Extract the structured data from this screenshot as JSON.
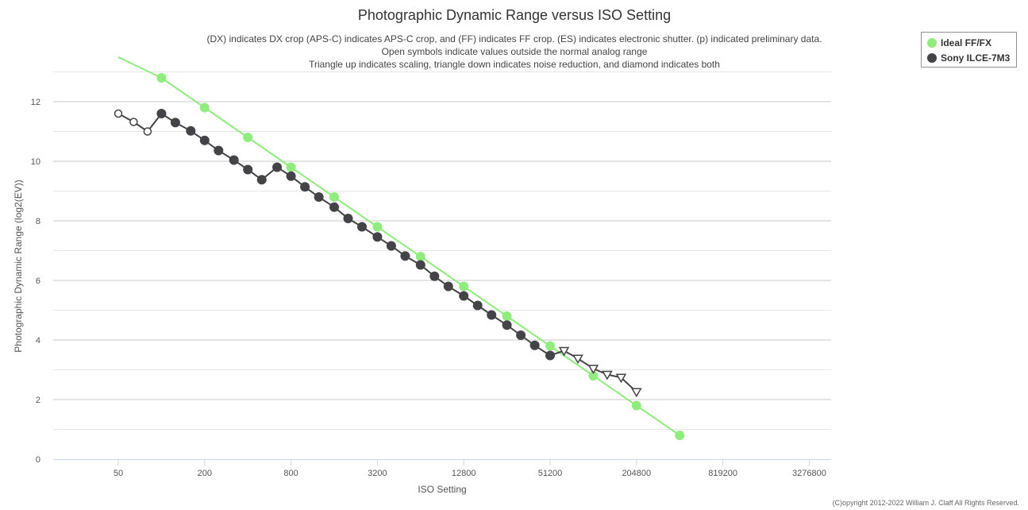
{
  "chart_data": {
    "type": "line",
    "title": "Photographic Dynamic Range versus ISO Setting",
    "subtitle_lines": [
      "(DX) indicates DX crop (APS-C) indicates APS-C crop, and (FF) indicates FF crop. (ES) indicates electronic shutter. (p) indicated preliminary data.",
      "Open symbols indicate values outside the normal analog range",
      "Triangle up indicates scaling, triangle down indicates noise reduction, and diamond indicates both"
    ],
    "xlabel": "ISO Setting",
    "ylabel": "Photographic Dynamic Range (log2(EV))",
    "x_scale": "log2",
    "x_tick_labels": [
      "50",
      "200",
      "800",
      "3200",
      "12800",
      "51200",
      "204800",
      "819200",
      "3276800"
    ],
    "y_tick_labels": [
      "0",
      "2",
      "4",
      "6",
      "8",
      "10",
      "12"
    ],
    "ylim": [
      0,
      13.5
    ],
    "grid": true,
    "legend_position": "top-right",
    "series": [
      {
        "name": "Ideal FF/FX",
        "color": "#90ed7d",
        "marker": "circle",
        "points": [
          {
            "x": 50,
            "y": 13.5,
            "marker": "none"
          },
          {
            "x": 100,
            "y": 12.8
          },
          {
            "x": 200,
            "y": 11.8
          },
          {
            "x": 400,
            "y": 10.8
          },
          {
            "x": 800,
            "y": 9.8
          },
          {
            "x": 1600,
            "y": 8.8
          },
          {
            "x": 3200,
            "y": 7.8
          },
          {
            "x": 6400,
            "y": 6.8
          },
          {
            "x": 12800,
            "y": 5.8
          },
          {
            "x": 25600,
            "y": 4.8
          },
          {
            "x": 51200,
            "y": 3.8
          },
          {
            "x": 102400,
            "y": 2.8
          },
          {
            "x": 204800,
            "y": 1.8
          },
          {
            "x": 409600,
            "y": 0.8
          }
        ]
      },
      {
        "name": "Sony ILCE-7M3",
        "color": "#434348",
        "marker": "circle",
        "points": [
          {
            "x": 50,
            "y": 11.6,
            "marker": "open-circle"
          },
          {
            "x": 64,
            "y": 11.32,
            "marker": "open-circle"
          },
          {
            "x": 80,
            "y": 11.0,
            "marker": "open-circle"
          },
          {
            "x": 100,
            "y": 11.6
          },
          {
            "x": 125,
            "y": 11.3
          },
          {
            "x": 160,
            "y": 11.02
          },
          {
            "x": 200,
            "y": 10.7
          },
          {
            "x": 250,
            "y": 10.36
          },
          {
            "x": 320,
            "y": 10.04
          },
          {
            "x": 400,
            "y": 9.72
          },
          {
            "x": 500,
            "y": 9.38
          },
          {
            "x": 640,
            "y": 9.8
          },
          {
            "x": 800,
            "y": 9.5
          },
          {
            "x": 1000,
            "y": 9.14
          },
          {
            "x": 1250,
            "y": 8.8
          },
          {
            "x": 1600,
            "y": 8.46
          },
          {
            "x": 2000,
            "y": 8.08
          },
          {
            "x": 2500,
            "y": 7.8
          },
          {
            "x": 3200,
            "y": 7.46
          },
          {
            "x": 4000,
            "y": 7.16
          },
          {
            "x": 5000,
            "y": 6.82
          },
          {
            "x": 6400,
            "y": 6.52
          },
          {
            "x": 8000,
            "y": 6.14
          },
          {
            "x": 10000,
            "y": 5.8
          },
          {
            "x": 12800,
            "y": 5.48
          },
          {
            "x": 16000,
            "y": 5.16
          },
          {
            "x": 20000,
            "y": 4.84
          },
          {
            "x": 25600,
            "y": 4.5
          },
          {
            "x": 32000,
            "y": 4.16
          },
          {
            "x": 40000,
            "y": 3.82
          },
          {
            "x": 51200,
            "y": 3.48
          },
          {
            "x": 64000,
            "y": 3.64,
            "marker": "open-triangle-down"
          },
          {
            "x": 80000,
            "y": 3.38,
            "marker": "open-triangle-down"
          },
          {
            "x": 102400,
            "y": 3.04,
            "marker": "open-triangle-down"
          },
          {
            "x": 128000,
            "y": 2.84,
            "marker": "open-triangle-down"
          },
          {
            "x": 160000,
            "y": 2.74,
            "marker": "open-triangle-down"
          },
          {
            "x": 204800,
            "y": 2.26,
            "marker": "open-triangle-down"
          }
        ]
      }
    ]
  },
  "credit": "(C)opyright 2012-2022 William J. Claff All Rights Reserved."
}
